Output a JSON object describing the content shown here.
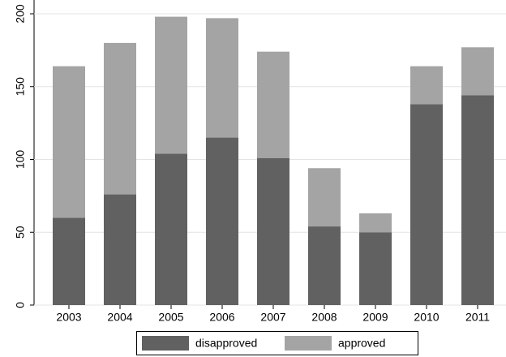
{
  "chart_data": {
    "type": "stacked_bar",
    "categories": [
      "2003",
      "2004",
      "2005",
      "2006",
      "2007",
      "2008",
      "2009",
      "2010",
      "2011"
    ],
    "series": [
      {
        "name": "disapproved",
        "color": "#616161",
        "values": [
          60,
          76,
          104,
          115,
          101,
          54,
          50,
          138,
          144
        ]
      },
      {
        "name": "approved",
        "color": "#a4a4a4",
        "values": [
          104,
          104,
          94,
          82,
          73,
          40,
          13,
          26,
          33
        ]
      }
    ],
    "ylim": [
      0,
      200
    ],
    "yticks": [
      0,
      50,
      100,
      150,
      200
    ],
    "grid": true,
    "legend": "bottom"
  }
}
